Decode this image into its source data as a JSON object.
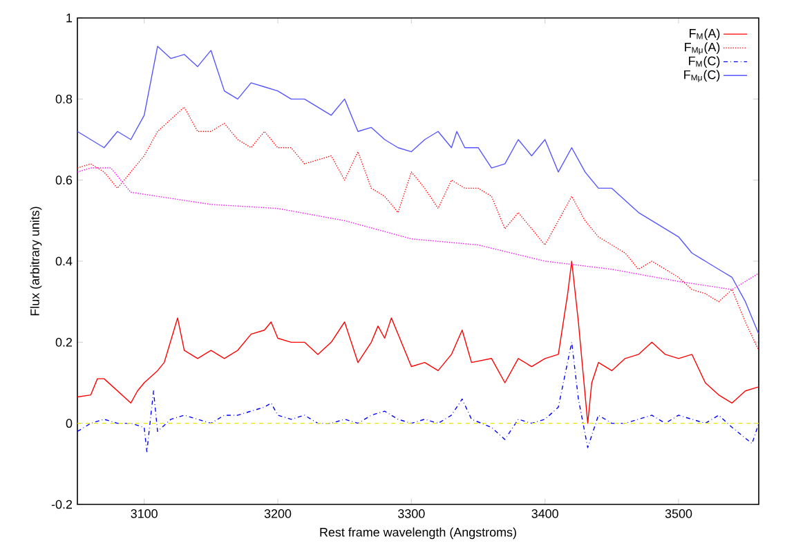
{
  "chart_data": {
    "type": "line",
    "xlabel": "Rest frame wavelength (Angstroms)",
    "ylabel": "Flux (arbitrary units)",
    "xlim": [
      3050,
      3560
    ],
    "ylim": [
      -0.2,
      1
    ],
    "xticks": [
      3100,
      3200,
      3300,
      3400,
      3500
    ],
    "yticks": [
      -0.2,
      0,
      0.2,
      0.4,
      0.6,
      0.8,
      1
    ],
    "legend": "top right",
    "series": [
      {
        "name": "F$_{M}$(A)",
        "color": "#ff0000",
        "line_style": "solid",
        "x": [
          3050,
          3060,
          3065,
          3070,
          3080,
          3090,
          3095,
          3100,
          3110,
          3115,
          3125,
          3130,
          3140,
          3150,
          3160,
          3170,
          3180,
          3190,
          3195,
          3200,
          3210,
          3220,
          3230,
          3240,
          3250,
          3260,
          3270,
          3275,
          3280,
          3285,
          3290,
          3300,
          3310,
          3320,
          3330,
          3338,
          3345,
          3360,
          3370,
          3380,
          3390,
          3400,
          3410,
          3417,
          3420,
          3425,
          3432,
          3435,
          3440,
          3450,
          3460,
          3470,
          3480,
          3490,
          3500,
          3510,
          3520,
          3530,
          3540,
          3550,
          3560
        ],
        "values": [
          0.065,
          0.07,
          0.11,
          0.11,
          0.08,
          0.05,
          0.08,
          0.1,
          0.13,
          0.15,
          0.26,
          0.18,
          0.16,
          0.18,
          0.16,
          0.18,
          0.22,
          0.23,
          0.25,
          0.21,
          0.2,
          0.2,
          0.17,
          0.2,
          0.25,
          0.15,
          0.2,
          0.24,
          0.21,
          0.26,
          0.22,
          0.14,
          0.15,
          0.13,
          0.17,
          0.23,
          0.15,
          0.16,
          0.1,
          0.16,
          0.14,
          0.16,
          0.17,
          0.32,
          0.4,
          0.25,
          0.0,
          0.1,
          0.15,
          0.13,
          0.16,
          0.17,
          0.2,
          0.17,
          0.16,
          0.17,
          0.1,
          0.07,
          0.05,
          0.08,
          0.09
        ]
      },
      {
        "name": "F$_{Mμ}$(A)",
        "color": "#ff0000",
        "line_style": "dotted",
        "x": [
          3050,
          3060,
          3070,
          3080,
          3090,
          3100,
          3110,
          3120,
          3130,
          3140,
          3150,
          3160,
          3170,
          3180,
          3190,
          3200,
          3210,
          3220,
          3230,
          3240,
          3250,
          3260,
          3270,
          3280,
          3290,
          3300,
          3310,
          3320,
          3330,
          3340,
          3350,
          3360,
          3370,
          3380,
          3390,
          3400,
          3410,
          3420,
          3430,
          3440,
          3450,
          3460,
          3470,
          3480,
          3490,
          3500,
          3510,
          3520,
          3530,
          3540,
          3550,
          3560
        ],
        "values": [
          0.63,
          0.64,
          0.62,
          0.58,
          0.62,
          0.66,
          0.72,
          0.75,
          0.78,
          0.72,
          0.72,
          0.74,
          0.7,
          0.68,
          0.72,
          0.68,
          0.68,
          0.64,
          0.65,
          0.66,
          0.6,
          0.67,
          0.58,
          0.56,
          0.52,
          0.62,
          0.58,
          0.53,
          0.6,
          0.58,
          0.58,
          0.56,
          0.48,
          0.52,
          0.48,
          0.44,
          0.5,
          0.56,
          0.5,
          0.46,
          0.44,
          0.42,
          0.38,
          0.4,
          0.38,
          0.36,
          0.33,
          0.32,
          0.3,
          0.33,
          0.25,
          0.18
        ]
      },
      {
        "name": "F$_{M}$(C)",
        "color": "#0000ff",
        "line_style": "dashdot",
        "x": [
          3050,
          3060,
          3070,
          3080,
          3090,
          3100,
          3102,
          3107,
          3110,
          3120,
          3130,
          3140,
          3150,
          3160,
          3170,
          3180,
          3190,
          3195,
          3200,
          3210,
          3220,
          3230,
          3240,
          3250,
          3260,
          3270,
          3280,
          3290,
          3300,
          3310,
          3320,
          3330,
          3338,
          3345,
          3360,
          3370,
          3380,
          3390,
          3400,
          3410,
          3420,
          3425,
          3432,
          3440,
          3450,
          3460,
          3470,
          3480,
          3490,
          3500,
          3510,
          3520,
          3530,
          3540,
          3555,
          3560
        ],
        "values": [
          -0.02,
          0.0,
          0.01,
          0.0,
          0.0,
          -0.01,
          -0.07,
          0.08,
          -0.02,
          0.01,
          0.02,
          0.01,
          0.0,
          0.02,
          0.02,
          0.03,
          0.04,
          0.05,
          0.02,
          0.01,
          0.02,
          0.0,
          0.0,
          0.01,
          0.0,
          0.02,
          0.03,
          0.01,
          0.0,
          0.01,
          0.0,
          0.02,
          0.06,
          0.01,
          -0.01,
          -0.04,
          0.01,
          0.0,
          0.01,
          0.04,
          0.2,
          0.06,
          -0.06,
          0.02,
          0.0,
          0.0,
          0.01,
          0.02,
          0.0,
          0.02,
          0.01,
          0.0,
          0.02,
          -0.01,
          -0.05,
          0.0
        ]
      },
      {
        "name": "F$_{Mμ}$(C)",
        "color": "#5555ff",
        "line_style": "solid",
        "x": [
          3050,
          3060,
          3070,
          3080,
          3090,
          3100,
          3110,
          3120,
          3130,
          3140,
          3150,
          3160,
          3170,
          3180,
          3190,
          3200,
          3210,
          3220,
          3230,
          3240,
          3250,
          3260,
          3270,
          3280,
          3290,
          3300,
          3310,
          3320,
          3330,
          3334,
          3340,
          3350,
          3360,
          3370,
          3380,
          3390,
          3400,
          3410,
          3420,
          3430,
          3440,
          3450,
          3460,
          3470,
          3480,
          3490,
          3500,
          3510,
          3520,
          3530,
          3540,
          3550,
          3560
        ],
        "values": [
          0.72,
          0.7,
          0.68,
          0.72,
          0.7,
          0.76,
          0.93,
          0.9,
          0.91,
          0.88,
          0.92,
          0.82,
          0.8,
          0.84,
          0.83,
          0.82,
          0.8,
          0.8,
          0.78,
          0.76,
          0.8,
          0.72,
          0.73,
          0.7,
          0.68,
          0.67,
          0.7,
          0.72,
          0.68,
          0.72,
          0.68,
          0.68,
          0.63,
          0.64,
          0.7,
          0.66,
          0.7,
          0.62,
          0.68,
          0.62,
          0.58,
          0.58,
          0.55,
          0.52,
          0.5,
          0.48,
          0.46,
          0.42,
          0.4,
          0.38,
          0.36,
          0.3,
          0.22
        ]
      },
      {
        "color": "#ff00ff",
        "line_style": "dotted",
        "x": [
          3050,
          3060,
          3075,
          3080,
          3085,
          3090,
          3100,
          3150,
          3200,
          3250,
          3300,
          3350,
          3400,
          3450,
          3500,
          3540,
          3560
        ],
        "values": [
          0.62,
          0.63,
          0.63,
          0.61,
          0.59,
          0.57,
          0.565,
          0.54,
          0.53,
          0.5,
          0.455,
          0.44,
          0.4,
          0.38,
          0.35,
          0.33,
          0.37
        ]
      },
      {
        "color": "#e6e600",
        "line_style": "dashed",
        "x": [
          3050,
          3560
        ],
        "values": [
          0,
          0
        ]
      }
    ]
  }
}
